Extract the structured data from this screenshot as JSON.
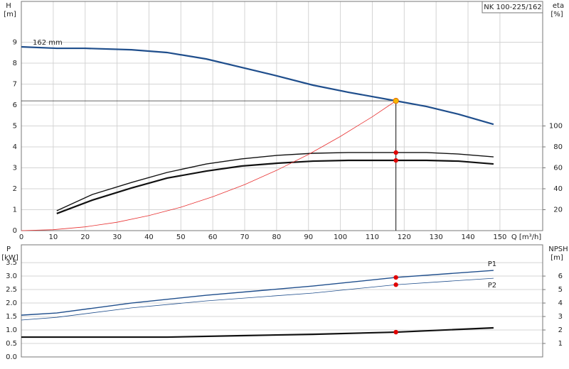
{
  "chart_data": [
    {
      "type": "line",
      "title": "NK 100-225/162",
      "annotation": "162 mm",
      "xlabel": "Q [m³/h]",
      "ylabel": "H",
      "yunit": "[m]",
      "y2label": "eta",
      "y2unit": "[%]",
      "xlim": [
        0,
        163.4
      ],
      "xticks": [
        0,
        10,
        20,
        30,
        40,
        50,
        60,
        70,
        80,
        90,
        100,
        110,
        120,
        130,
        140,
        150
      ],
      "ylim": [
        0,
        10.95
      ],
      "yticks": [
        0,
        1,
        2,
        3,
        4,
        5,
        6,
        7,
        8,
        9
      ],
      "y2lim": [
        0,
        219
      ],
      "y2ticks": [
        20,
        40,
        60,
        80,
        100
      ],
      "grid": true,
      "series": [
        {
          "color": "#1f4e8c",
          "linestyle": "thick",
          "x": [
            0,
            11.1,
            20,
            34.5,
            45.6,
            58,
            69,
            80.2,
            91.4,
            102.5,
            117.4,
            127,
            137,
            148
          ],
          "values": [
            8.78,
            8.71,
            8.71,
            8.64,
            8.51,
            8.2,
            7.8,
            7.39,
            6.95,
            6.61,
            6.2,
            5.93,
            5.56,
            5.08
          ]
        },
        {
          "color": "#111111",
          "linestyle": "medium",
          "axis": "y2",
          "x": [
            11.1,
            22.3,
            34.5,
            45.7,
            58,
            69,
            80.2,
            91.4,
            102.5,
            117.4,
            127,
            137,
            148
          ],
          "values": [
            19,
            34.6,
            46,
            55.6,
            63.7,
            68.5,
            71.9,
            73.9,
            74.6,
            74.6,
            74.6,
            73.2,
            70.5
          ]
        },
        {
          "color": "#111111",
          "linestyle": "thick",
          "axis": "y2",
          "x": [
            11.1,
            22.3,
            34.5,
            45.7,
            58,
            69,
            80.2,
            91.4,
            102.5,
            117.4,
            127,
            137,
            148
          ],
          "values": [
            16.3,
            29.2,
            40.7,
            50.2,
            56.9,
            61.7,
            64.4,
            66.4,
            67.1,
            67.1,
            67.1,
            66.4,
            63.7
          ]
        },
        {
          "color": "#e83030",
          "linestyle": "thin",
          "x": [
            0,
            10,
            20,
            30,
            40,
            50,
            60,
            70,
            80,
            90,
            100,
            110,
            117.4
          ],
          "values": [
            0,
            0.045,
            0.18,
            0.4,
            0.72,
            1.12,
            1.62,
            2.2,
            2.88,
            3.64,
            4.5,
            5.44,
            6.2
          ]
        }
      ],
      "operating_point": {
        "x": 117.4,
        "y": 6.2,
        "color": "#f5b800"
      },
      "markers": [
        {
          "x": 117.4,
          "y": 74.6,
          "axis": "y2",
          "color": "#e00000"
        },
        {
          "x": 117.4,
          "y": 67.1,
          "axis": "y2",
          "color": "#e00000"
        }
      ]
    },
    {
      "type": "line",
      "ylabel": "P",
      "yunit": "[kW]",
      "y2label": "NPSH",
      "y2unit": "[m]",
      "xlim": [
        0,
        163.4
      ],
      "ylim": [
        0,
        4.16
      ],
      "yticks": [
        {
          "value": 0,
          "label": "0.0"
        },
        0.5,
        {
          "value": 1,
          "label": "1.0"
        },
        1.5,
        {
          "value": 2,
          "label": "2.0"
        },
        2.5,
        {
          "value": 3,
          "label": "3.0"
        },
        3.5
      ],
      "y2lim": [
        0,
        8.32
      ],
      "y2ticks": [
        1,
        2,
        3,
        4,
        5,
        6
      ],
      "grid": true,
      "series": [
        {
          "name": "P1",
          "label_position": "above",
          "color": "#1f4e8c",
          "linestyle": "medium",
          "x": [
            0,
            11.1,
            34.5,
            58,
            91.4,
            117.4,
            148
          ],
          "values": [
            1.55,
            1.63,
            2.0,
            2.29,
            2.63,
            2.95,
            3.21
          ]
        },
        {
          "name": "P2",
          "label_position": "below",
          "color": "#1f4e8c",
          "linestyle": "thin",
          "x": [
            0,
            11.1,
            34.5,
            58,
            91.4,
            117.4,
            148
          ],
          "values": [
            1.37,
            1.47,
            1.82,
            2.08,
            2.37,
            2.68,
            2.92
          ]
        },
        {
          "color": "#111111",
          "linestyle": "thick",
          "axis": "y2",
          "x": [
            0,
            11.1,
            45.7,
            69,
            91.4,
            117.4,
            148
          ],
          "values": [
            1.47,
            1.47,
            1.47,
            1.58,
            1.68,
            1.84,
            2.16
          ]
        }
      ],
      "markers": [
        {
          "x": 117.4,
          "y": 2.95,
          "color": "#e00000"
        },
        {
          "x": 117.4,
          "y": 2.68,
          "color": "#e00000"
        },
        {
          "x": 117.4,
          "y": 1.84,
          "axis": "y2",
          "color": "#e00000"
        }
      ]
    }
  ]
}
